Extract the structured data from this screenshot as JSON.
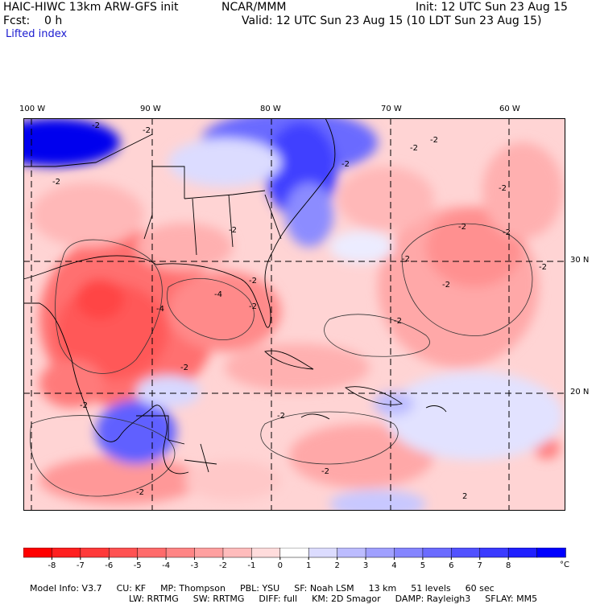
{
  "header": {
    "model": "HAIC-HIWC 13km ARW-GFS init",
    "org": "NCAR/MMM",
    "init": "Init: 12 UTC Sun 23 Aug 15",
    "fcst": "Fcst:    0 h",
    "valid": "Valid: 12 UTC Sun 23 Aug 15 (10 LDT Sun 23 Aug 15)",
    "field": "Lifted index"
  },
  "map": {
    "lon_labels": [
      "100 W",
      "90 W",
      "80 W",
      "70 W",
      "60 W"
    ],
    "lat_labels": [
      "30 N",
      "20 N"
    ],
    "contour_labels": [
      "-2",
      "-4",
      "2"
    ]
  },
  "colorbar": {
    "ticks": [
      "-8",
      "-7",
      "-6",
      "-5",
      "-4",
      "-3",
      "-2",
      "-1",
      "0",
      "1",
      "2",
      "3",
      "4",
      "5",
      "6",
      "7",
      "8"
    ],
    "unit": "°C",
    "colors": [
      "#ff0000",
      "#ff2020",
      "#ff3a3a",
      "#ff5252",
      "#ff6b6b",
      "#ff8585",
      "#ffa0a0",
      "#ffbcbc",
      "#ffdcdc",
      "#ffffff",
      "#dcdcff",
      "#bcbcff",
      "#a0a0ff",
      "#8585ff",
      "#6b6bff",
      "#5252ff",
      "#3a3aff",
      "#2020ff",
      "#0000ff"
    ]
  },
  "model_info": {
    "line1": [
      "Model Info: V3.7",
      "CU: KF",
      "MP: Thompson",
      "PBL: YSU",
      "SF: Noah LSM",
      "13 km",
      "51 levels",
      "60 sec"
    ],
    "line2": [
      "LW: RRTMG",
      "SW: RRTMG",
      "DIFF: full",
      "KM: 2D Smagor",
      "DAMP: Rayleigh3",
      "SFLAY: MM5"
    ]
  }
}
